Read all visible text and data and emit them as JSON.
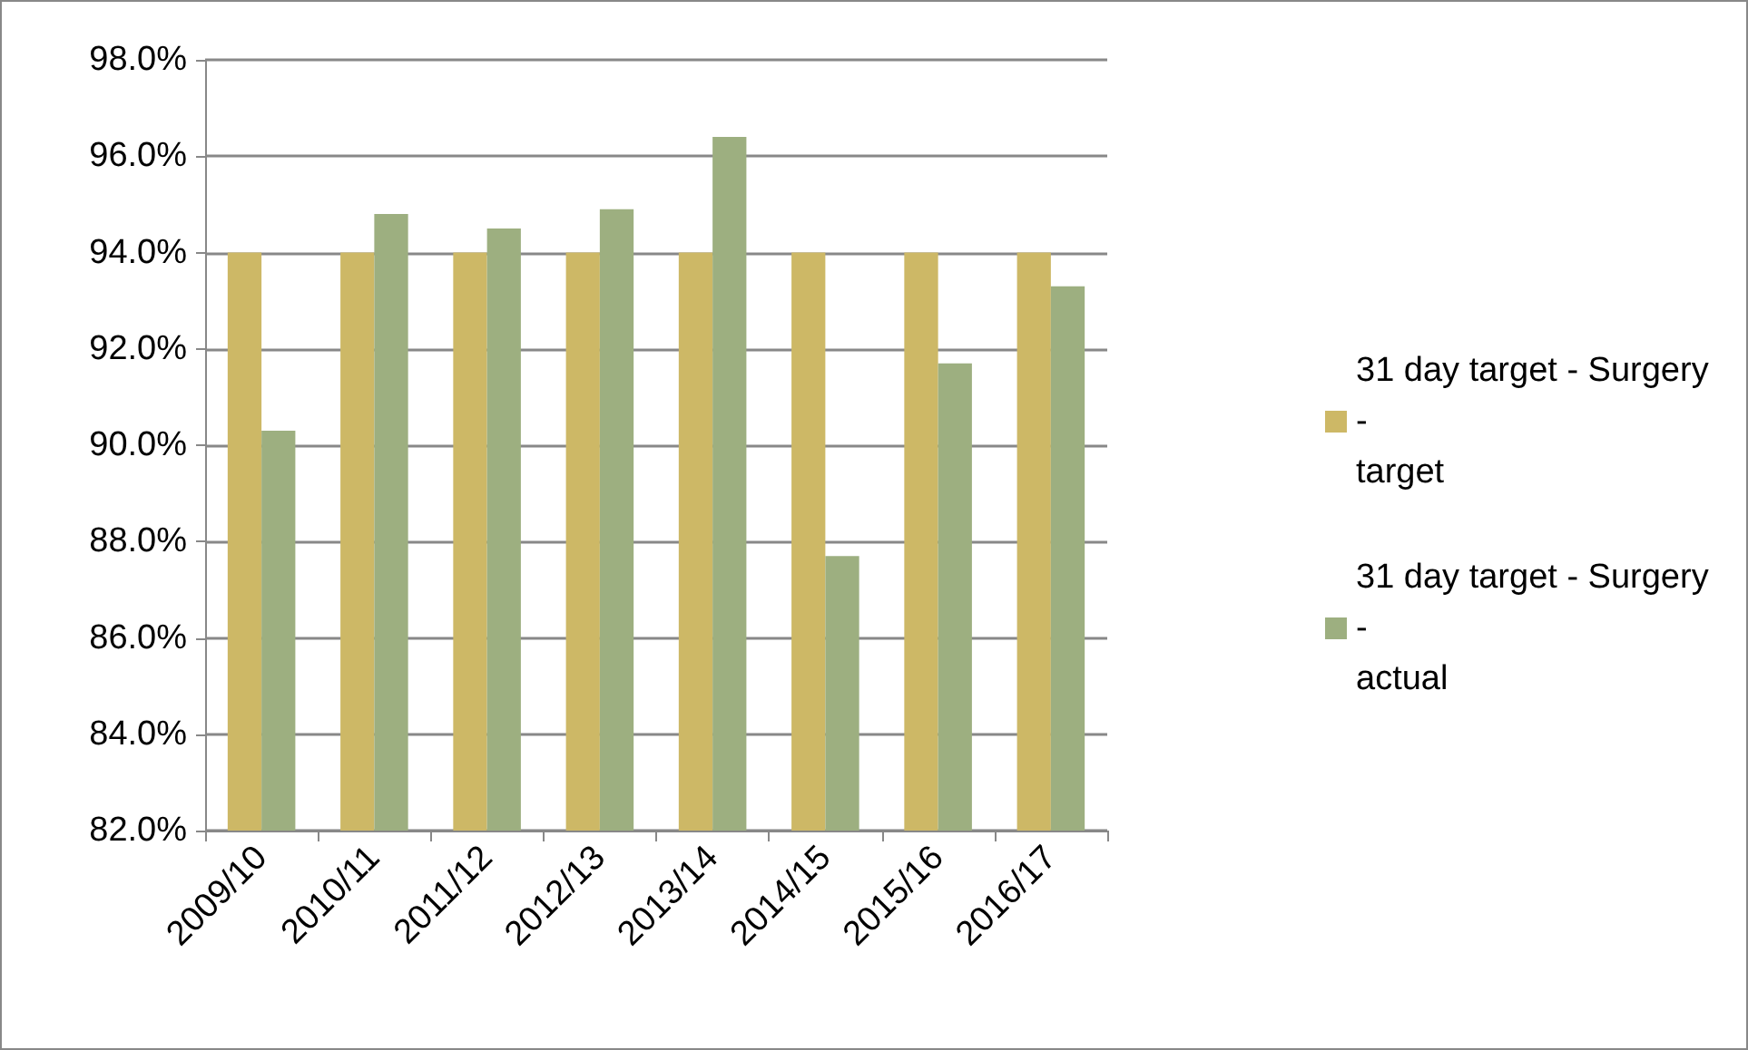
{
  "chart_data": {
    "type": "bar",
    "categories": [
      "2009/10",
      "2010/11",
      "2011/12",
      "2012/13",
      "2013/14",
      "2014/15",
      "2015/16",
      "2016/17"
    ],
    "series": [
      {
        "name": "31 day target - Surgery - target",
        "color": "#cdb866",
        "values": [
          94.0,
          94.0,
          94.0,
          94.0,
          94.0,
          94.0,
          94.0,
          94.0
        ]
      },
      {
        "name": "31 day target - Surgery - actual",
        "color": "#9daf80",
        "values": [
          90.3,
          94.8,
          94.5,
          94.9,
          96.4,
          87.7,
          91.7,
          93.3
        ]
      }
    ],
    "ylim": [
      82,
      98
    ],
    "yticks": [
      {
        "value": 82,
        "label": "82.0%"
      },
      {
        "value": 84,
        "label": "84.0%"
      },
      {
        "value": 86,
        "label": "86.0%"
      },
      {
        "value": 88,
        "label": "88.0%"
      },
      {
        "value": 90,
        "label": "90.0%"
      },
      {
        "value": 92,
        "label": "92.0%"
      },
      {
        "value": 94,
        "label": "94.0%"
      },
      {
        "value": 96,
        "label": "96.0%"
      },
      {
        "value": 98,
        "label": "98.0%"
      }
    ],
    "grid": "y",
    "legend": "right"
  }
}
